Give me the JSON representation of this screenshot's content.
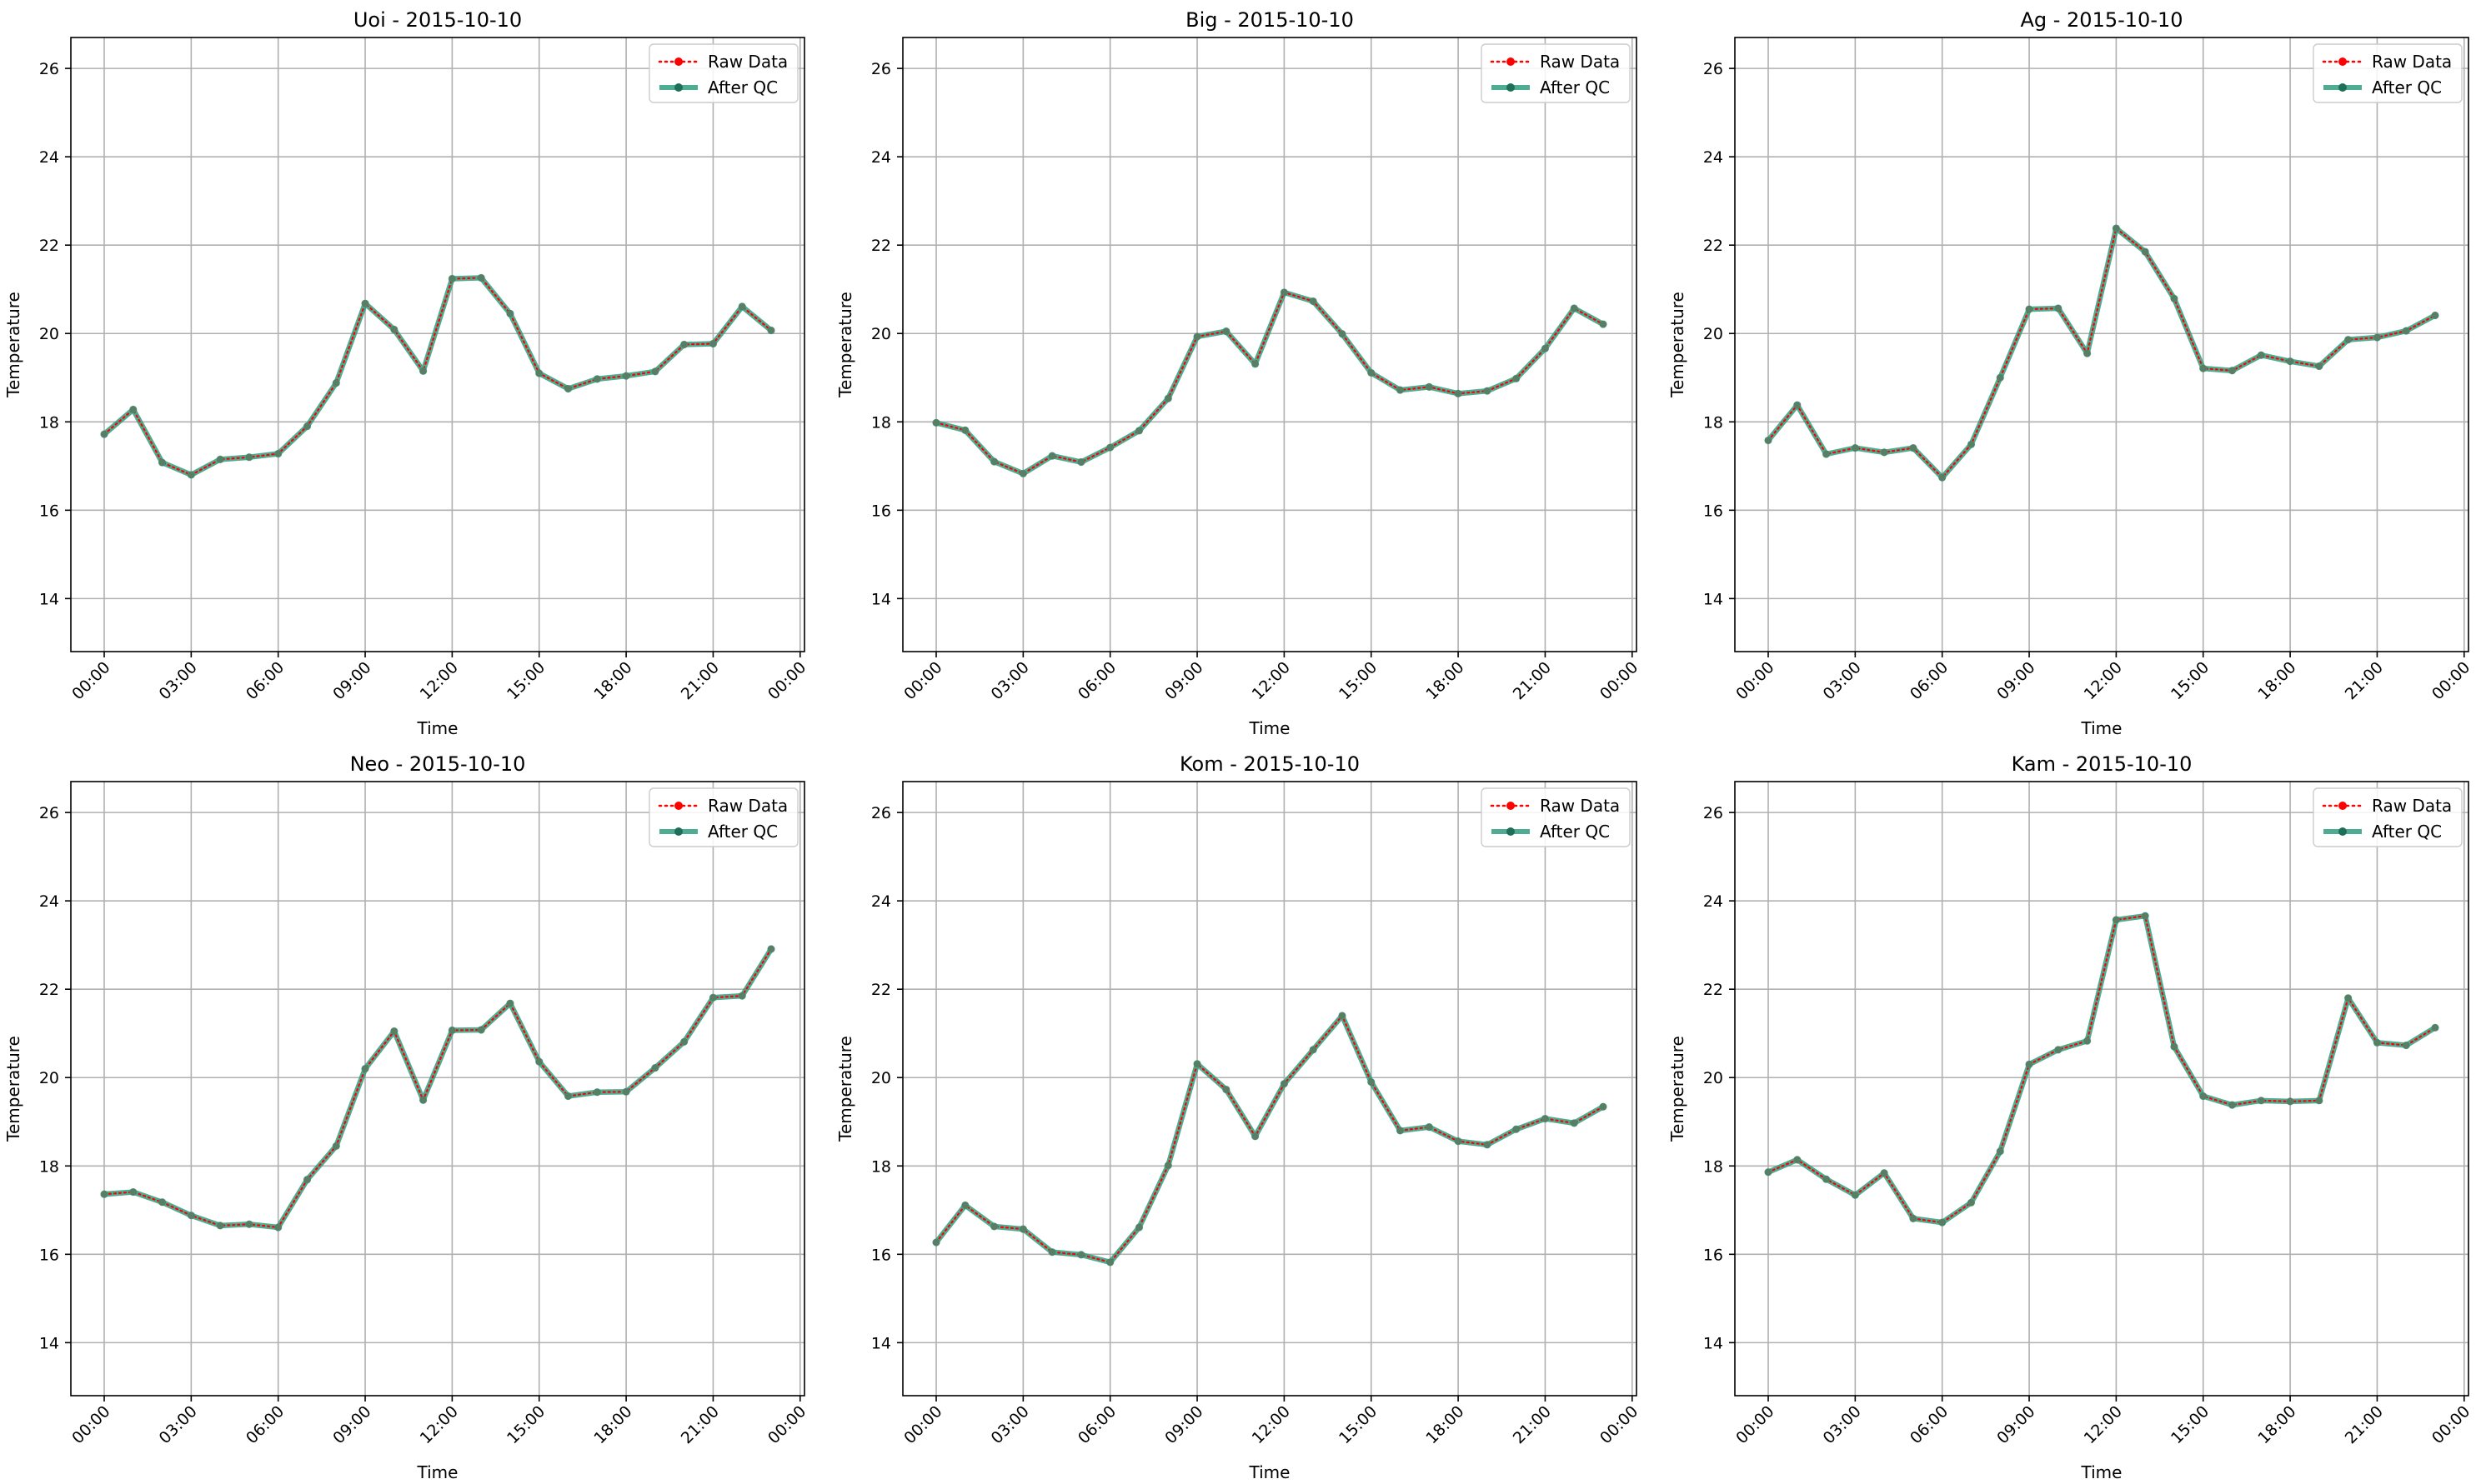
{
  "chart_data": [
    {
      "type": "line",
      "title": "Uoi - 2015-10-10",
      "xlabel": "Time",
      "ylabel": "Temperature",
      "ylim": [
        12.8,
        26.7
      ],
      "yticks": [
        14,
        16,
        18,
        20,
        22,
        24,
        26
      ],
      "xlim": [
        -1.15,
        24.15
      ],
      "xticks": [
        0,
        3,
        6,
        9,
        12,
        15,
        18,
        21,
        24
      ],
      "xtick_labels": [
        "00:00",
        "03:00",
        "06:00",
        "09:00",
        "12:00",
        "15:00",
        "18:00",
        "21:00",
        "00:00"
      ],
      "grid": true,
      "legend_position": "top-right",
      "series": [
        {
          "name": "Raw Data",
          "color": "#ff0000",
          "values": [
            17.72,
            18.28,
            17.08,
            16.8,
            17.15,
            17.2,
            17.28,
            17.9,
            18.88,
            20.68,
            20.09,
            19.15,
            21.24,
            21.26,
            20.45,
            19.1,
            18.75,
            18.97,
            19.04,
            19.14,
            19.75,
            19.77,
            20.61,
            20.07
          ]
        },
        {
          "name": "After QC",
          "color": "#2e9e7e",
          "values": [
            17.72,
            18.28,
            17.08,
            16.8,
            17.15,
            17.2,
            17.28,
            17.9,
            18.88,
            20.68,
            20.09,
            19.15,
            21.24,
            21.26,
            20.45,
            19.1,
            18.75,
            18.97,
            19.04,
            19.14,
            19.75,
            19.77,
            20.61,
            20.07
          ]
        }
      ]
    },
    {
      "type": "line",
      "title": "Big - 2015-10-10",
      "xlabel": "Time",
      "ylabel": "Temperature",
      "ylim": [
        12.8,
        26.7
      ],
      "yticks": [
        14,
        16,
        18,
        20,
        22,
        24,
        26
      ],
      "xlim": [
        -1.15,
        24.15
      ],
      "xticks": [
        0,
        3,
        6,
        9,
        12,
        15,
        18,
        21,
        24
      ],
      "xtick_labels": [
        "00:00",
        "03:00",
        "06:00",
        "09:00",
        "12:00",
        "15:00",
        "18:00",
        "21:00",
        "00:00"
      ],
      "grid": true,
      "legend_position": "top-right",
      "series": [
        {
          "name": "Raw Data",
          "color": "#ff0000",
          "values": [
            17.98,
            17.81,
            17.1,
            16.83,
            17.23,
            17.09,
            17.42,
            17.8,
            18.53,
            19.93,
            20.05,
            19.31,
            20.93,
            20.73,
            19.99,
            19.11,
            18.72,
            18.79,
            18.64,
            18.7,
            18.98,
            19.66,
            20.57,
            20.21
          ]
        },
        {
          "name": "After QC",
          "color": "#2e9e7e",
          "values": [
            17.98,
            17.81,
            17.1,
            16.83,
            17.23,
            17.09,
            17.42,
            17.8,
            18.53,
            19.93,
            20.05,
            19.31,
            20.93,
            20.73,
            19.99,
            19.11,
            18.72,
            18.79,
            18.64,
            18.7,
            18.98,
            19.66,
            20.57,
            20.21
          ]
        }
      ]
    },
    {
      "type": "line",
      "title": "Ag - 2015-10-10",
      "xlabel": "Time",
      "ylabel": "Temperature",
      "ylim": [
        12.8,
        26.7
      ],
      "yticks": [
        14,
        16,
        18,
        20,
        22,
        24,
        26
      ],
      "xlim": [
        -1.15,
        24.15
      ],
      "xticks": [
        0,
        3,
        6,
        9,
        12,
        15,
        18,
        21,
        24
      ],
      "xtick_labels": [
        "00:00",
        "03:00",
        "06:00",
        "09:00",
        "12:00",
        "15:00",
        "18:00",
        "21:00",
        "00:00"
      ],
      "grid": true,
      "legend_position": "top-right",
      "series": [
        {
          "name": "Raw Data",
          "color": "#ff0000",
          "values": [
            17.58,
            18.38,
            17.27,
            17.41,
            17.31,
            17.41,
            16.74,
            17.49,
            19.0,
            20.55,
            20.57,
            19.55,
            22.38,
            21.85,
            20.79,
            19.21,
            19.16,
            19.51,
            19.37,
            19.26,
            19.86,
            19.91,
            20.06,
            20.41
          ]
        },
        {
          "name": "After QC",
          "color": "#2e9e7e",
          "values": [
            17.58,
            18.38,
            17.27,
            17.41,
            17.31,
            17.41,
            16.74,
            17.49,
            19.0,
            20.55,
            20.57,
            19.55,
            22.38,
            21.85,
            20.79,
            19.21,
            19.16,
            19.51,
            19.37,
            19.26,
            19.86,
            19.91,
            20.06,
            20.41
          ]
        }
      ]
    },
    {
      "type": "line",
      "title": "Neo - 2015-10-10",
      "xlabel": "Time",
      "ylabel": "Temperature",
      "ylim": [
        12.8,
        26.7
      ],
      "yticks": [
        14,
        16,
        18,
        20,
        22,
        24,
        26
      ],
      "xlim": [
        -1.15,
        24.15
      ],
      "xticks": [
        0,
        3,
        6,
        9,
        12,
        15,
        18,
        21,
        24
      ],
      "xtick_labels": [
        "00:00",
        "03:00",
        "06:00",
        "09:00",
        "12:00",
        "15:00",
        "18:00",
        "21:00",
        "00:00"
      ],
      "grid": true,
      "legend_position": "top-right",
      "series": [
        {
          "name": "Raw Data",
          "color": "#ff0000",
          "values": [
            17.36,
            17.41,
            17.18,
            16.88,
            16.65,
            16.68,
            16.61,
            17.69,
            18.45,
            20.2,
            21.05,
            19.49,
            21.07,
            21.08,
            21.68,
            20.36,
            19.58,
            19.67,
            19.68,
            20.22,
            20.81,
            21.81,
            21.85,
            22.91
          ]
        },
        {
          "name": "After QC",
          "color": "#2e9e7e",
          "values": [
            17.36,
            17.41,
            17.18,
            16.88,
            16.65,
            16.68,
            16.61,
            17.69,
            18.45,
            20.2,
            21.05,
            19.49,
            21.07,
            21.08,
            21.68,
            20.36,
            19.58,
            19.67,
            19.68,
            20.22,
            20.81,
            21.81,
            21.85,
            22.91
          ]
        }
      ]
    },
    {
      "type": "line",
      "title": "Kom - 2015-10-10",
      "xlabel": "Time",
      "ylabel": "Temperature",
      "ylim": [
        12.8,
        26.7
      ],
      "yticks": [
        14,
        16,
        18,
        20,
        22,
        24,
        26
      ],
      "xlim": [
        -1.15,
        24.15
      ],
      "xticks": [
        0,
        3,
        6,
        9,
        12,
        15,
        18,
        21,
        24
      ],
      "xtick_labels": [
        "00:00",
        "03:00",
        "06:00",
        "09:00",
        "12:00",
        "15:00",
        "18:00",
        "21:00",
        "00:00"
      ],
      "grid": true,
      "legend_position": "top-right",
      "series": [
        {
          "name": "Raw Data",
          "color": "#ff0000",
          "values": [
            16.27,
            17.11,
            16.63,
            16.57,
            16.05,
            15.99,
            15.82,
            16.61,
            18.01,
            20.31,
            19.73,
            18.67,
            19.86,
            20.63,
            21.4,
            19.9,
            18.8,
            18.88,
            18.56,
            18.48,
            18.83,
            19.07,
            18.97,
            19.34
          ]
        },
        {
          "name": "After QC",
          "color": "#2e9e7e",
          "values": [
            16.27,
            17.11,
            16.63,
            16.57,
            16.05,
            15.99,
            15.82,
            16.61,
            18.01,
            20.31,
            19.73,
            18.67,
            19.86,
            20.63,
            21.4,
            19.9,
            18.8,
            18.88,
            18.56,
            18.48,
            18.83,
            19.07,
            18.97,
            19.34
          ]
        }
      ]
    },
    {
      "type": "line",
      "title": "Kam - 2015-10-10",
      "xlabel": "Time",
      "ylabel": "Temperature",
      "ylim": [
        12.8,
        26.7
      ],
      "yticks": [
        14,
        16,
        18,
        20,
        22,
        24,
        26
      ],
      "xlim": [
        -1.15,
        24.15
      ],
      "xticks": [
        0,
        3,
        6,
        9,
        12,
        15,
        18,
        21,
        24
      ],
      "xtick_labels": [
        "00:00",
        "03:00",
        "06:00",
        "09:00",
        "12:00",
        "15:00",
        "18:00",
        "21:00",
        "00:00"
      ],
      "grid": true,
      "legend_position": "top-right",
      "series": [
        {
          "name": "Raw Data",
          "color": "#ff0000",
          "values": [
            17.86,
            18.14,
            17.7,
            17.34,
            17.84,
            16.81,
            16.72,
            17.17,
            18.33,
            20.3,
            20.63,
            20.83,
            23.57,
            23.66,
            20.7,
            19.58,
            19.38,
            19.48,
            19.46,
            19.48,
            21.8,
            20.79,
            20.73,
            21.13
          ]
        },
        {
          "name": "After QC",
          "color": "#2e9e7e",
          "values": [
            17.86,
            18.14,
            17.7,
            17.34,
            17.84,
            16.81,
            16.72,
            17.17,
            18.33,
            20.3,
            20.63,
            20.83,
            23.57,
            23.66,
            20.7,
            19.58,
            19.38,
            19.48,
            19.46,
            19.48,
            21.8,
            20.79,
            20.73,
            21.13
          ]
        }
      ]
    }
  ]
}
